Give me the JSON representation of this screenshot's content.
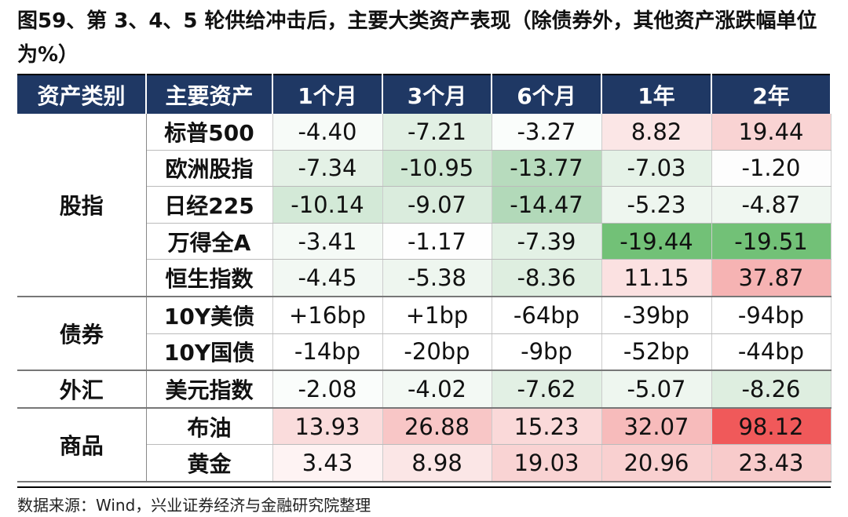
{
  "title": "图59、第 3、4、5 轮供给冲击后，主要大类资产表现（除债券外，其他资产涨跌幅单位为%）",
  "table": {
    "headers": [
      "资产类别",
      "主要资产",
      "1个月",
      "3个月",
      "6个月",
      "1年",
      "2年"
    ],
    "groups": [
      {
        "name": "股指",
        "rows": [
          {
            "asset": "标普500",
            "values": [
              "-4.40",
              "-7.21",
              "-3.27",
              "8.82",
              "19.44"
            ]
          },
          {
            "asset": "欧洲股指",
            "values": [
              "-7.34",
              "-10.95",
              "-13.77",
              "-7.03",
              "-1.20"
            ]
          },
          {
            "asset": "日经225",
            "values": [
              "-10.14",
              "-9.07",
              "-14.47",
              "-5.23",
              "-4.87"
            ]
          },
          {
            "asset": "万得全A",
            "values": [
              "-3.41",
              "-1.17",
              "-7.39",
              "-19.44",
              "-19.51"
            ]
          },
          {
            "asset": "恒生指数",
            "values": [
              "-4.45",
              "-5.38",
              "-8.36",
              "11.15",
              "37.87"
            ]
          }
        ]
      },
      {
        "name": "债券",
        "rows": [
          {
            "asset": "10Y美债",
            "values": [
              "+16bp",
              "+1bp",
              "-64bp",
              "-39bp",
              "-94bp"
            ]
          },
          {
            "asset": "10Y国债",
            "values": [
              "-14bp",
              "-20bp",
              "-9bp",
              "-52bp",
              "-44bp"
            ]
          }
        ]
      },
      {
        "name": "外汇",
        "rows": [
          {
            "asset": "美元指数",
            "values": [
              "-2.08",
              "-4.02",
              "-7.62",
              "-5.07",
              "-8.26"
            ]
          }
        ]
      },
      {
        "name": "商品",
        "rows": [
          {
            "asset": "布油",
            "values": [
              "13.93",
              "26.88",
              "15.23",
              "32.07",
              "98.12"
            ]
          },
          {
            "asset": "黄金",
            "values": [
              "3.43",
              "8.98",
              "19.03",
              "20.96",
              "23.43"
            ]
          }
        ]
      }
    ]
  },
  "source": "数据来源：Wind，兴业证券经济与金融研究院整理"
}
